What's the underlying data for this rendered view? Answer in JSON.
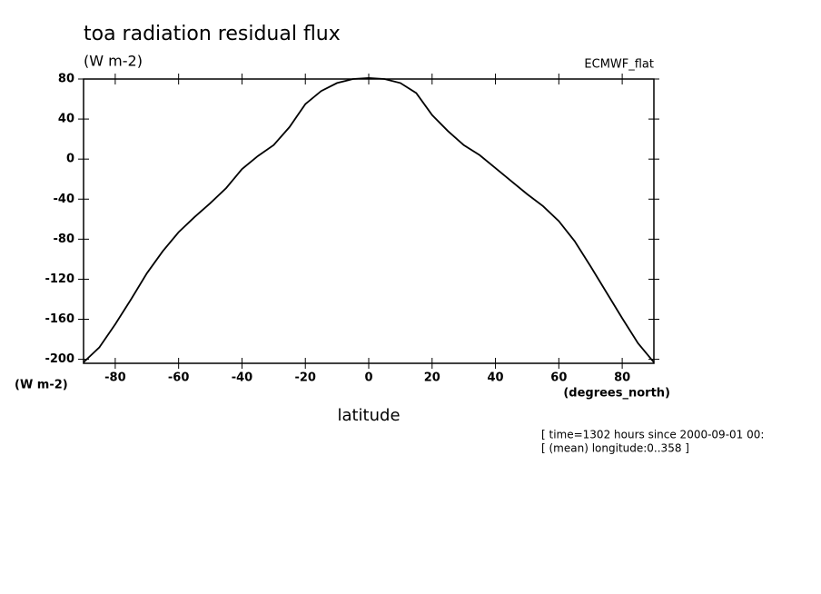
{
  "chart_data": {
    "type": "line",
    "title": "toa radiation residual flux",
    "subtitle": "(W m-2)",
    "dataset_label": "ECMWF_flat",
    "y_unit_label": "(W m-2)",
    "x_unit_label": "(degrees_north)",
    "x_label": "latitude",
    "notes": [
      "[ time=1302 hours since 2000-09-01 00:",
      "[ (mean) longitude:0..358 ]"
    ],
    "x": [
      -90,
      -85,
      -80,
      -75,
      -70,
      -65,
      -60,
      -55,
      -50,
      -45,
      -40,
      -35,
      -30,
      -25,
      -20,
      -15,
      -10,
      -5,
      0,
      5,
      10,
      15,
      20,
      25,
      30,
      35,
      40,
      45,
      50,
      55,
      60,
      65,
      70,
      75,
      80,
      85,
      90
    ],
    "series": [
      {
        "color": "#000000",
        "values": [
          -203,
          -188,
          -165,
          -140,
          -114,
          -92,
          -73,
          -58,
          -44,
          -29,
          -10,
          3,
          14,
          32,
          55,
          68,
          76,
          80,
          81,
          80,
          76,
          66,
          44,
          28,
          14,
          4,
          -9,
          -22,
          -35,
          -47,
          -62,
          -82,
          -107,
          -133,
          -159,
          -184,
          -203
        ]
      }
    ],
    "xlim": [
      -90,
      90
    ],
    "ylim": [
      -204,
      80
    ],
    "xticks": [
      -80,
      -60,
      -40,
      -20,
      0,
      20,
      40,
      60,
      80
    ],
    "yticks": [
      -200,
      -160,
      -120,
      -80,
      -40,
      0,
      40,
      80
    ]
  }
}
